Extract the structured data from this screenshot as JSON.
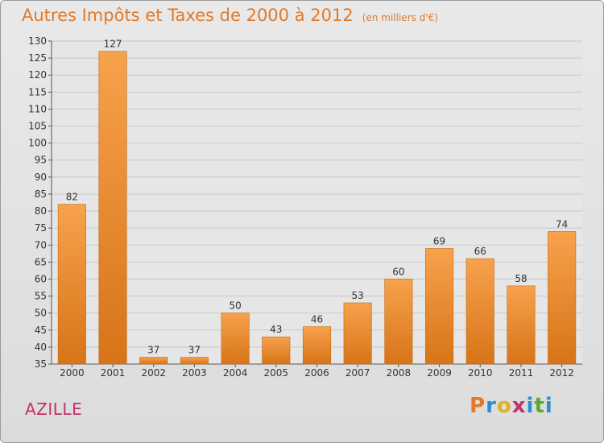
{
  "header": {
    "title": "Autres Impôts et Taxes de 2000 à 2012",
    "unit": "(en milliers d'€)"
  },
  "footer": {
    "commune": "AZILLE",
    "logo_text": "Proxiti",
    "logo_colors": [
      "#e07a2a",
      "#2a8fd0",
      "#e0b020",
      "#c43070",
      "#2a8fd0",
      "#5aa832",
      "#2a8fd0"
    ]
  },
  "colors": {
    "bar_light": "#f7a24c",
    "bar_dark": "#d77418",
    "title": "#e07a2a",
    "commune": "#c4306a"
  },
  "chart_data": {
    "type": "bar",
    "title": "Autres Impôts et Taxes de 2000 à 2012",
    "subtitle": "(en milliers d'€)",
    "categories": [
      "2000",
      "2001",
      "2002",
      "2003",
      "2004",
      "2005",
      "2006",
      "2007",
      "2008",
      "2009",
      "2010",
      "2011",
      "2012"
    ],
    "values": [
      82,
      127,
      37,
      37,
      50,
      43,
      46,
      53,
      60,
      69,
      66,
      58,
      74
    ],
    "ylim": [
      35,
      130
    ],
    "yticks": [
      35,
      40,
      45,
      50,
      55,
      60,
      65,
      70,
      75,
      80,
      85,
      90,
      95,
      100,
      105,
      110,
      115,
      120,
      125,
      130
    ],
    "grid": true,
    "legend": "none"
  }
}
